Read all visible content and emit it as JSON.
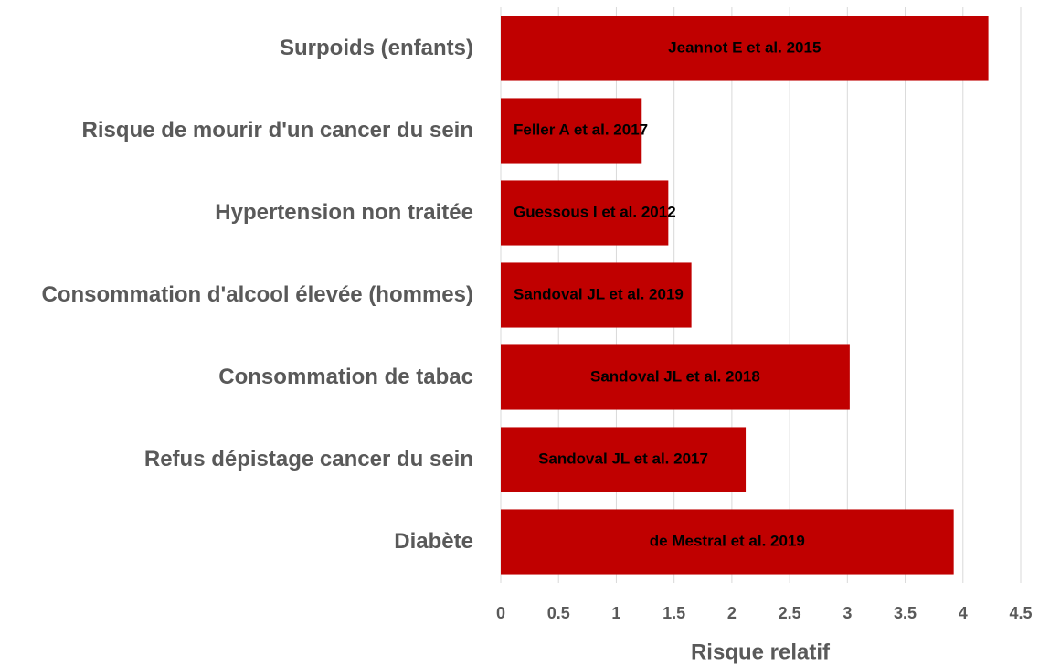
{
  "chart_data": {
    "type": "bar",
    "orientation": "horizontal",
    "categories": [
      "Surpoids (enfants)",
      "Risque de mourir d'un cancer du sein",
      "Hypertension non traitée",
      "Consommation d'alcool élevée (hommes)",
      "Consommation de tabac",
      "Refus dépistage cancer du sein",
      "Diabète"
    ],
    "values": [
      4.22,
      1.22,
      1.45,
      1.65,
      3.02,
      2.12,
      3.92
    ],
    "bar_labels": [
      "Jeannot E et al. 2015",
      "Feller A et al. 2017",
      "Guessous I et al. 2012",
      "Sandoval JL et al. 2019",
      "Sandoval JL et al. 2018",
      "Sandoval JL et al. 2017",
      "de Mestral et al. 2019"
    ],
    "color": "#c00000",
    "xlabel": "Risque relatif",
    "xlim": [
      0,
      4.5
    ],
    "xticks": [
      0,
      0.5,
      1,
      1.5,
      2,
      2.5,
      3,
      3.5,
      4,
      4.5
    ],
    "grid": true
  }
}
